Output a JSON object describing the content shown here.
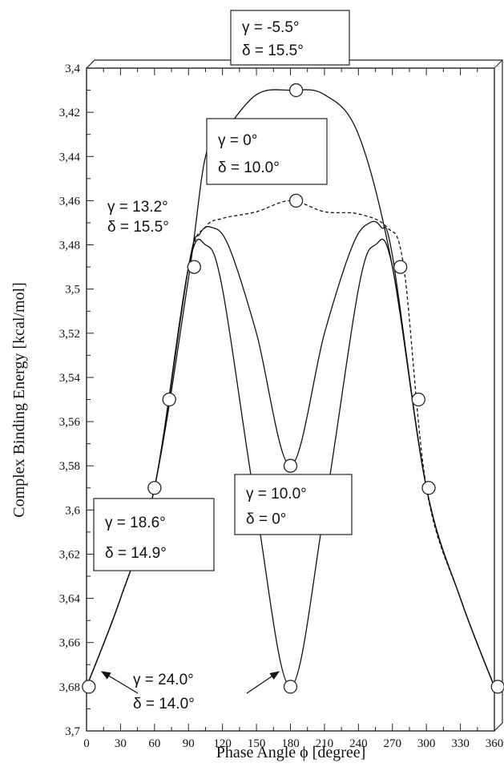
{
  "chart_data": {
    "type": "line",
    "xlabel": "Phase Angle ϕ [degree]",
    "ylabel": "Complex Binding Energy [kcal/mol]",
    "xlim": [
      0,
      360
    ],
    "ylim": [
      3.4,
      3.7
    ],
    "y_inverted": true,
    "x_ticks": [
      0,
      30,
      60,
      90,
      120,
      150,
      180,
      210,
      240,
      270,
      300,
      330,
      360
    ],
    "x_tick_labels": [
      "0",
      "30",
      "60",
      "90",
      "120",
      "150",
      "180",
      "210",
      "240",
      "270",
      "300",
      "330",
      "360"
    ],
    "y_ticks": [
      3.4,
      3.42,
      3.44,
      3.46,
      3.48,
      3.5,
      3.52,
      3.54,
      3.56,
      3.58,
      3.6,
      3.62,
      3.64,
      3.66,
      3.68,
      3.7
    ],
    "y_tick_labels": [
      "3,4",
      "3,42",
      "3,44",
      "3,46",
      "3,48",
      "3,5",
      "3,52",
      "3,54",
      "3,56",
      "3,58",
      "3,6",
      "3,62",
      "3,64",
      "3,66",
      "3,68",
      "3,7"
    ],
    "grid": false,
    "series": [
      {
        "style": "solid",
        "x": [
          0,
          30,
          60,
          90,
          105,
          120,
          150,
          180,
          210,
          240,
          270,
          300,
          330,
          360
        ],
        "y": [
          3.68,
          3.64,
          3.59,
          3.495,
          3.44,
          3.43,
          3.412,
          3.41,
          3.412,
          3.43,
          3.49,
          3.59,
          3.64,
          3.68
        ]
      },
      {
        "style": "dashed",
        "x": [
          0,
          30,
          60,
          90,
          105,
          120,
          150,
          180,
          210,
          240,
          265,
          280,
          300,
          330,
          360
        ],
        "y": [
          3.68,
          3.64,
          3.59,
          3.49,
          3.472,
          3.468,
          3.465,
          3.46,
          3.465,
          3.466,
          3.472,
          3.49,
          3.59,
          3.64,
          3.68
        ]
      },
      {
        "style": "solid",
        "x": [
          0,
          30,
          60,
          90,
          100,
          110,
          125,
          150,
          180,
          210,
          235,
          250,
          260,
          270,
          300,
          330,
          360
        ],
        "y": [
          3.68,
          3.64,
          3.59,
          3.49,
          3.475,
          3.472,
          3.48,
          3.52,
          3.58,
          3.52,
          3.48,
          3.47,
          3.472,
          3.485,
          3.59,
          3.64,
          3.68
        ]
      },
      {
        "style": "solid",
        "x": [
          0,
          30,
          60,
          90,
          105,
          120,
          150,
          180,
          210,
          240,
          255,
          270,
          300,
          330,
          360
        ],
        "y": [
          3.68,
          3.64,
          3.59,
          3.49,
          3.48,
          3.5,
          3.6,
          3.68,
          3.6,
          3.5,
          3.48,
          3.49,
          3.59,
          3.64,
          3.68
        ]
      }
    ],
    "markers": [
      {
        "x": 2,
        "y": 3.68
      },
      {
        "x": 60,
        "y": 3.59
      },
      {
        "x": 73,
        "y": 3.55
      },
      {
        "x": 95,
        "y": 3.49
      },
      {
        "x": 185,
        "y": 3.41
      },
      {
        "x": 185,
        "y": 3.46
      },
      {
        "x": 180,
        "y": 3.58
      },
      {
        "x": 180,
        "y": 3.68
      },
      {
        "x": 277,
        "y": 3.49
      },
      {
        "x": 293,
        "y": 3.55
      },
      {
        "x": 302,
        "y": 3.59
      },
      {
        "x": 363,
        "y": 3.68
      }
    ],
    "annotations": [
      {
        "gamma": "γ =  -5.5°",
        "delta": "δ = 15.5°",
        "boxed": true
      },
      {
        "gamma": "γ =    0°",
        "delta": "δ = 10.0°",
        "boxed": true
      },
      {
        "gamma": "γ = 13.2°",
        "delta": "δ = 15.5°",
        "boxed": false
      },
      {
        "gamma": "γ = 10.0°",
        "delta": "δ = 0°",
        "boxed": true
      },
      {
        "gamma": "γ = 18.6°",
        "delta": "δ = 14.9°",
        "boxed": true
      },
      {
        "gamma": "γ = 24.0°",
        "delta": "δ = 14.0°",
        "boxed": false
      }
    ]
  }
}
